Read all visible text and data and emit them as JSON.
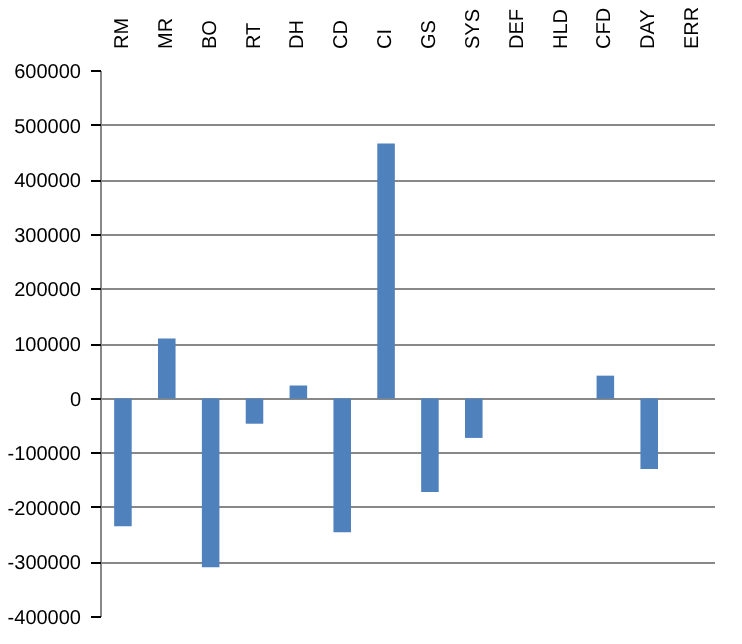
{
  "chart_data": {
    "type": "bar",
    "categories": [
      "RM",
      "MR",
      "BO",
      "RT",
      "DH",
      "CD",
      "CI",
      "GS",
      "SYS",
      "DEF",
      "HLD",
      "CFD",
      "DAY",
      "ERR"
    ],
    "series": [
      {
        "color": "#4f81bd",
        "values": [
          -234000,
          110000,
          -309000,
          -46000,
          24000,
          -245000,
          467000,
          -171000,
          -72000,
          0,
          0,
          42000,
          -129000,
          0
        ]
      }
    ],
    "ylim": [
      -400000,
      600000
    ],
    "yticks": [
      -400000,
      -300000,
      -200000,
      -100000,
      0,
      100000,
      200000,
      300000,
      400000,
      500000,
      600000
    ],
    "grid": "y"
  }
}
